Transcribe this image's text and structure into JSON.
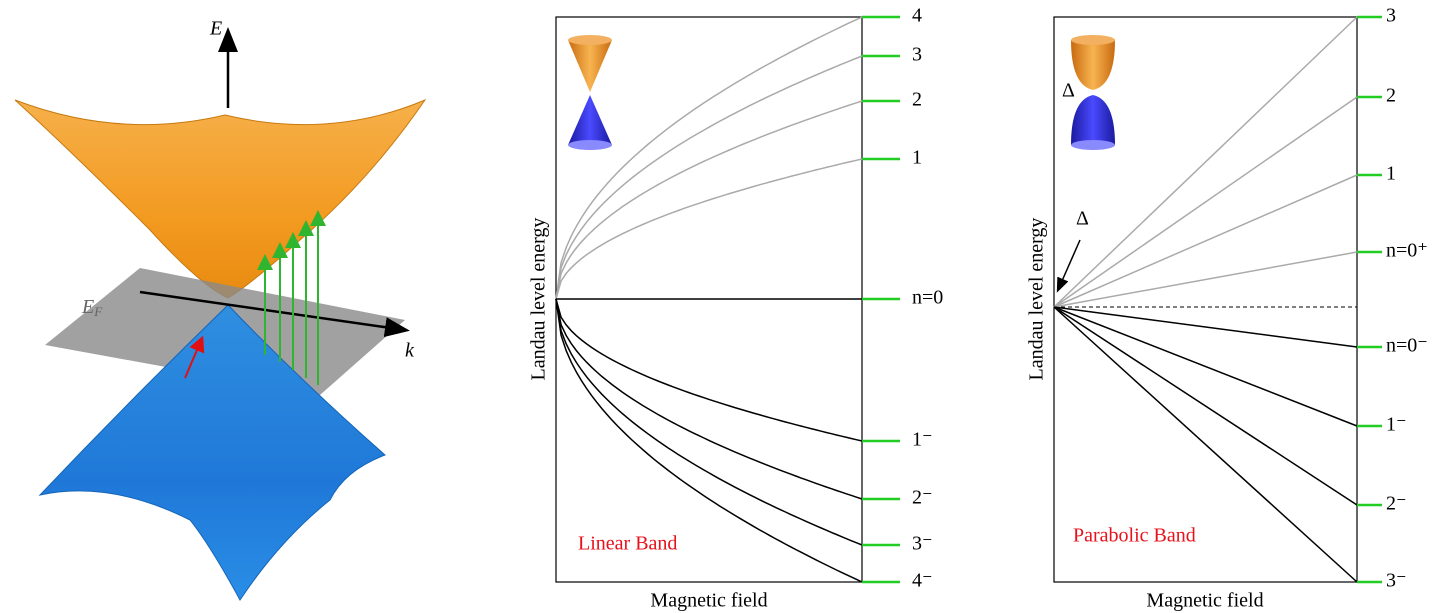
{
  "band_diagram": {
    "energy_axis": "E",
    "fermi_label": {
      "main": "E",
      "sub": "F"
    },
    "momentum_axis": "k"
  },
  "linear_panel": {
    "y_axis_label": "Landau level energy",
    "x_axis_label": "Magnetic field",
    "band_label": "Linear Band",
    "levels": [
      "4",
      "3",
      "2",
      "1",
      "n=0",
      "1⁻",
      "2⁻",
      "3⁻",
      "4⁻"
    ]
  },
  "parabolic_panel": {
    "y_axis_label": "Landau level energy",
    "x_axis_label": "Magnetic field",
    "band_label": "Parabolic Band",
    "gap_labels": [
      "Δ",
      "Δ"
    ],
    "levels": [
      "3",
      "2",
      "1",
      "n=0⁺",
      "n=0⁻",
      "1⁻",
      "2⁻",
      "3⁻"
    ]
  }
}
